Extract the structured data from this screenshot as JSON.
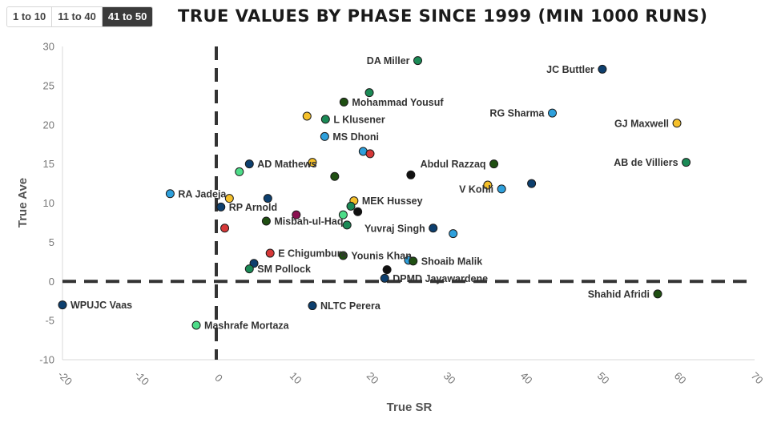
{
  "tabs": [
    {
      "label": "1 to 10",
      "active": false
    },
    {
      "label": "11 to 40",
      "active": false
    },
    {
      "label": "41 to 50",
      "active": true
    }
  ],
  "colors": {
    "navy": "#0d3f6e",
    "sky": "#2ea0dc",
    "dkgreen": "#1f4f12",
    "green": "#1b8a56",
    "mint": "#4ddc88",
    "yellow": "#f5c02a",
    "red": "#d63838",
    "purple": "#8a1050",
    "black": "#111111"
  },
  "chart_data": {
    "type": "scatter",
    "title": "True values by phase since 1999 (min 1000 runs)",
    "xlabel": "True SR",
    "ylabel": "True Ave",
    "xlim": [
      -20,
      70
    ],
    "ylim": [
      -10,
      30
    ],
    "xticks": [
      -20,
      -10,
      0,
      10,
      20,
      30,
      40,
      50,
      60,
      70
    ],
    "yticks": [
      -10,
      -5,
      0,
      5,
      10,
      15,
      20,
      25,
      30
    ],
    "reference_lines": {
      "x": 0,
      "y": 0
    },
    "points": [
      {
        "x": 26.2,
        "y": 28.2,
        "color": "green",
        "label": "DA Miller",
        "pos": "left"
      },
      {
        "x": 50.2,
        "y": 27.1,
        "color": "navy",
        "label": "JC Buttler",
        "pos": "left"
      },
      {
        "x": 19.9,
        "y": 24.1,
        "color": "green",
        "label": "",
        "pos": "right"
      },
      {
        "x": 16.6,
        "y": 22.9,
        "color": "dkgreen",
        "label": "Mohammad Yousuf",
        "pos": "right"
      },
      {
        "x": 43.7,
        "y": 21.5,
        "color": "sky",
        "label": "RG Sharma",
        "pos": "left"
      },
      {
        "x": 11.8,
        "y": 21.1,
        "color": "yellow",
        "label": "",
        "pos": "right"
      },
      {
        "x": 14.2,
        "y": 20.7,
        "color": "green",
        "label": "L Klusener",
        "pos": "right"
      },
      {
        "x": 59.9,
        "y": 20.2,
        "color": "yellow",
        "label": "GJ Maxwell",
        "pos": "left"
      },
      {
        "x": 14.1,
        "y": 18.5,
        "color": "sky",
        "label": "MS Dhoni",
        "pos": "right"
      },
      {
        "x": 19.1,
        "y": 16.6,
        "color": "sky",
        "label": "",
        "pos": "right"
      },
      {
        "x": 20.0,
        "y": 16.3,
        "color": "red",
        "label": "",
        "pos": "right"
      },
      {
        "x": 61.1,
        "y": 15.2,
        "color": "green",
        "label": "AB de Villiers",
        "pos": "left"
      },
      {
        "x": 36.1,
        "y": 15.0,
        "color": "dkgreen",
        "label": "Abdul Razzaq",
        "pos": "left"
      },
      {
        "x": 4.3,
        "y": 15.0,
        "color": "navy",
        "label": "AD Mathews",
        "pos": "right"
      },
      {
        "x": 12.5,
        "y": 15.2,
        "color": "yellow",
        "label": "",
        "pos": "right"
      },
      {
        "x": 3.0,
        "y": 14.0,
        "color": "mint",
        "label": "",
        "pos": "right"
      },
      {
        "x": 25.3,
        "y": 13.6,
        "color": "black",
        "label": "",
        "pos": "right"
      },
      {
        "x": 15.4,
        "y": 13.4,
        "color": "dkgreen",
        "label": "",
        "pos": "right"
      },
      {
        "x": 41.0,
        "y": 12.5,
        "color": "navy",
        "label": "",
        "pos": "right"
      },
      {
        "x": 35.3,
        "y": 12.3,
        "color": "yellow",
        "label": "",
        "pos": "right"
      },
      {
        "x": 37.1,
        "y": 11.8,
        "color": "sky",
        "label": "V Kohli",
        "pos": "left"
      },
      {
        "x": -6.0,
        "y": 11.2,
        "color": "sky",
        "label": "RA Jadeja",
        "pos": "right"
      },
      {
        "x": 1.7,
        "y": 10.6,
        "color": "yellow",
        "label": "",
        "pos": "right"
      },
      {
        "x": 6.7,
        "y": 10.6,
        "color": "navy",
        "label": "",
        "pos": "right"
      },
      {
        "x": 17.9,
        "y": 10.3,
        "color": "yellow",
        "label": "MEK Hussey",
        "pos": "right"
      },
      {
        "x": 0.6,
        "y": 9.5,
        "color": "navy",
        "label": "RP Arnold",
        "pos": "right"
      },
      {
        "x": 17.5,
        "y": 9.6,
        "color": "green",
        "label": "",
        "pos": "right"
      },
      {
        "x": 18.4,
        "y": 8.9,
        "color": "black",
        "label": "",
        "pos": "right"
      },
      {
        "x": 10.4,
        "y": 8.5,
        "color": "purple",
        "label": "",
        "pos": "right"
      },
      {
        "x": 16.5,
        "y": 8.5,
        "color": "mint",
        "label": "",
        "pos": "right"
      },
      {
        "x": 6.5,
        "y": 7.7,
        "color": "dkgreen",
        "label": "Misbah-ul-Haq",
        "pos": "right"
      },
      {
        "x": 17.0,
        "y": 7.2,
        "color": "green",
        "label": "",
        "pos": "right"
      },
      {
        "x": 1.1,
        "y": 6.8,
        "color": "red",
        "label": "",
        "pos": "right"
      },
      {
        "x": 28.2,
        "y": 6.8,
        "color": "navy",
        "label": "Yuvraj Singh",
        "pos": "left"
      },
      {
        "x": 30.8,
        "y": 6.1,
        "color": "sky",
        "label": "",
        "pos": "right"
      },
      {
        "x": 7.0,
        "y": 3.6,
        "color": "red",
        "label": "E Chigumbura",
        "pos": "right"
      },
      {
        "x": 16.5,
        "y": 3.3,
        "color": "dkgreen",
        "label": "Younis Khan",
        "pos": "right"
      },
      {
        "x": 25.0,
        "y": 2.7,
        "color": "sky",
        "label": "",
        "pos": "right"
      },
      {
        "x": 25.6,
        "y": 2.6,
        "color": "dkgreen",
        "label": "Shoaib Malik",
        "pos": "right"
      },
      {
        "x": 4.9,
        "y": 2.3,
        "color": "navy",
        "label": "",
        "pos": "right"
      },
      {
        "x": 4.3,
        "y": 1.6,
        "color": "green",
        "label": "SM Pollock",
        "pos": "right"
      },
      {
        "x": 22.2,
        "y": 1.5,
        "color": "black",
        "label": "",
        "pos": "right"
      },
      {
        "x": 21.9,
        "y": 0.4,
        "color": "navy",
        "label": "DPMD Jayawardene",
        "pos": "right"
      },
      {
        "x": 57.4,
        "y": -1.6,
        "color": "dkgreen",
        "label": "Shahid Afridi",
        "pos": "left"
      },
      {
        "x": -20.0,
        "y": -3.0,
        "color": "navy",
        "label": "WPUJC Vaas",
        "pos": "right"
      },
      {
        "x": 12.5,
        "y": -3.1,
        "color": "navy",
        "label": "NLTC Perera",
        "pos": "right"
      },
      {
        "x": -2.6,
        "y": -5.6,
        "color": "mint",
        "label": "Mashrafe Mortaza",
        "pos": "right"
      }
    ]
  }
}
